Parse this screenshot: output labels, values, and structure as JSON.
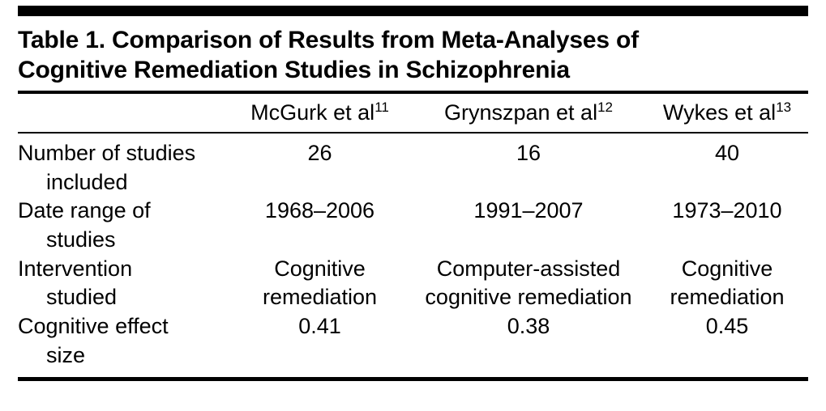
{
  "table": {
    "title": "Table 1. Comparison of Results from Meta-Analyses of Cognitive Remediation Studies in Schizophrenia",
    "columns": [
      {
        "name": "McGurk et al",
        "ref": "11"
      },
      {
        "name": "Grynszpan et al",
        "ref": "12"
      },
      {
        "name": "Wykes et al",
        "ref": "13"
      }
    ],
    "rows": [
      {
        "label1": "Number of studies",
        "label2": "included",
        "values": [
          "26",
          "16",
          "40"
        ]
      },
      {
        "label1": "Date range of",
        "label2": "studies",
        "values": [
          "1968–2006",
          "1991–2007",
          "1973–2010"
        ]
      },
      {
        "label1": "Intervention",
        "label2": "studied",
        "values": [
          "Cognitive remediation",
          "Computer-assisted cognitive remediation",
          "Cognitive remediation"
        ]
      },
      {
        "label1": "Cognitive effect",
        "label2": "size",
        "values": [
          "0.41",
          "0.38",
          "0.45"
        ]
      }
    ]
  },
  "chart_data": {
    "type": "table",
    "title": "Table 1. Comparison of Results from Meta-Analyses of Cognitive Remediation Studies in Schizophrenia",
    "columns": [
      "",
      "McGurk et al (ref 11)",
      "Grynszpan et al (ref 12)",
      "Wykes et al (ref 13)"
    ],
    "rows": [
      [
        "Number of studies included",
        "26",
        "16",
        "40"
      ],
      [
        "Date range of studies",
        "1968–2006",
        "1991–2007",
        "1973–2010"
      ],
      [
        "Intervention studied",
        "Cognitive remediation",
        "Computer-assisted cognitive remediation",
        "Cognitive remediation"
      ],
      [
        "Cognitive effect size",
        "0.41",
        "0.38",
        "0.45"
      ]
    ]
  }
}
